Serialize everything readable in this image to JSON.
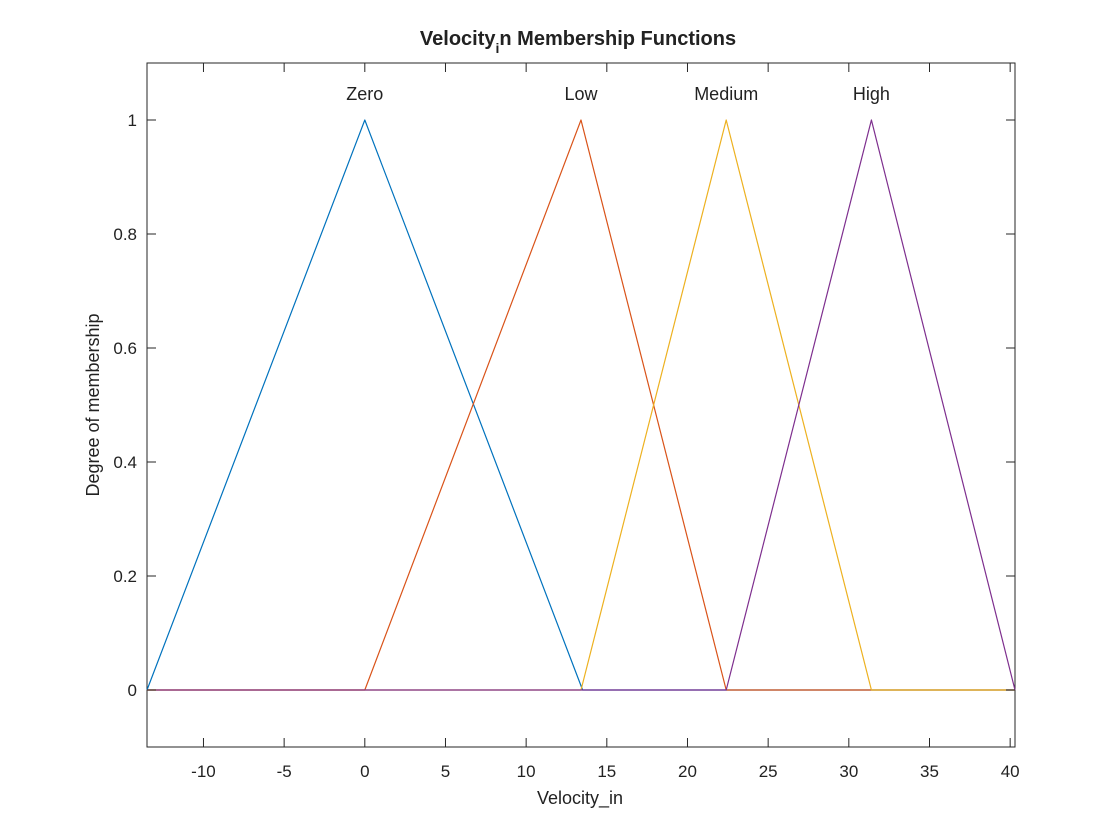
{
  "chart_data": {
    "type": "line",
    "title_main": "Velocity",
    "title_sub": "i",
    "title_rest": "n Membership Functions",
    "xlabel": "Velocity_in",
    "ylabel": "Degree of membership",
    "xlim": [
      -13.5,
      40.3
    ],
    "ylim": [
      -0.1,
      1.1
    ],
    "xticks": [
      -10,
      -5,
      0,
      5,
      10,
      15,
      20,
      25,
      30,
      35,
      40
    ],
    "yticks": [
      0,
      0.2,
      0.4,
      0.6,
      0.8,
      1
    ],
    "ytick_labels": [
      "0",
      "0.2",
      "0.4",
      "0.6",
      "0.8",
      "1"
    ],
    "grid": false,
    "series": [
      {
        "name": "Zero",
        "color": "#0072BD",
        "x": [
          -13.5,
          0,
          13.5,
          40.3
        ],
        "y": [
          0,
          1,
          0,
          0
        ]
      },
      {
        "name": "Low",
        "color": "#D95319",
        "x": [
          -13.5,
          0,
          13.4,
          22.4,
          40.3
        ],
        "y": [
          0,
          0,
          1,
          0,
          0
        ]
      },
      {
        "name": "Medium",
        "color": "#EDB120",
        "x": [
          -13.5,
          13.4,
          22.4,
          31.4,
          40.3
        ],
        "y": [
          0,
          0,
          1,
          0,
          0
        ]
      },
      {
        "name": "High",
        "color": "#7E2F8E",
        "x": [
          -13.5,
          22.4,
          31.4,
          40.3
        ],
        "y": [
          0,
          0,
          1,
          0
        ]
      }
    ]
  }
}
